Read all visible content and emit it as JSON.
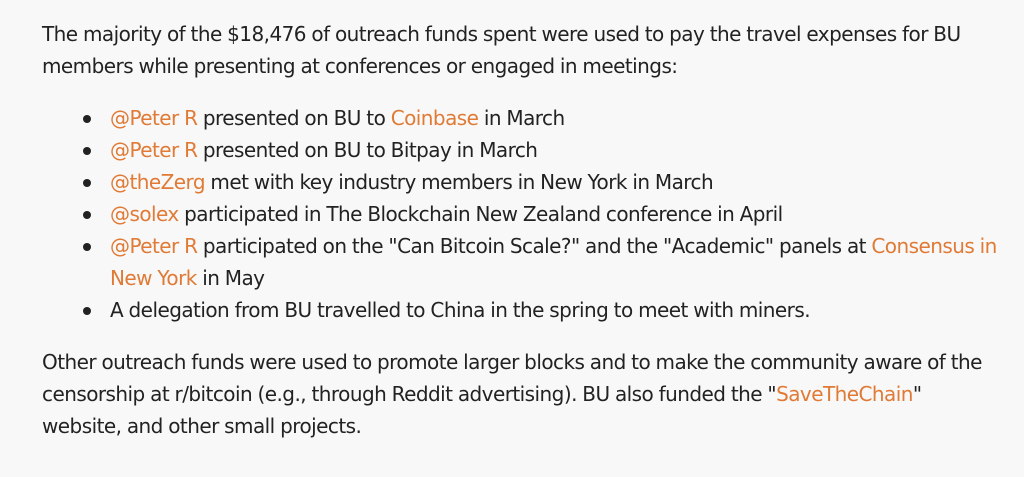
{
  "intro": {
    "text": "The majority of the $18,476 of outreach funds spent were used to pay the travel expenses for BU members while presenting at conferences or engaged in meetings:"
  },
  "colors": {
    "text": "#222222",
    "link": "#e07a35",
    "background": "#f8f8f8"
  },
  "items": [
    {
      "mention": "@Peter R",
      "text1": "presented on BU to",
      "link": "Coinbase",
      "text2": "in March"
    },
    {
      "mention": "@Peter R",
      "text1": "presented on BU to Bitpay in March"
    },
    {
      "mention": "@theZerg",
      "text1": "met with key industry members in New York in March"
    },
    {
      "mention": "@solex",
      "text1": "participated in The Blockchain New Zealand conference in April"
    },
    {
      "mention": "@Peter R",
      "text1": "participated on the \"Can Bitcoin Scale?\" and the \"Academic\" panels at",
      "link": "Consensus in New York",
      "text2": "in May"
    },
    {
      "text1": "A delegation from BU travelled to China in the spring to meet with miners."
    }
  ],
  "outro": {
    "before": "Other outreach funds were used to promote larger blocks and to make the community aware of the censorship at r/bitcoin (e.g., through Reddit advertising). BU also funded the \"",
    "link": "SaveTheChain",
    "after": "\" website, and other small projects."
  }
}
